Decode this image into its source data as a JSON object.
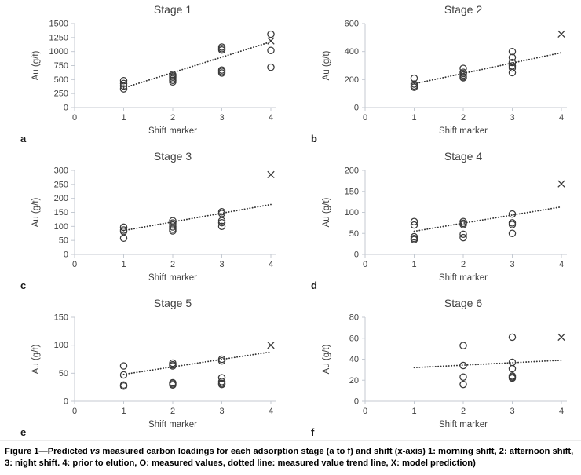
{
  "figure": {
    "caption_prefix": "Figure 1—Predicted ",
    "caption_italic": "vs",
    "caption_rest": " measured carbon loadings for each adsorption stage (a to f) and shift (x-axis) 1: morning shift, 2: afternoon shift, 3: night shift. 4: prior to elution, O: measured values, dotted line: measured value trend line, X: model prediction)"
  },
  "colors": {
    "axis": "#c4cad2",
    "text": "#404040",
    "marker": "#3a3a3a",
    "trend": "#333333"
  },
  "chart_data": [
    {
      "type": "scatter",
      "panel": "a",
      "title": "Stage 1",
      "xlabel": "Shift marker",
      "ylabel": "Au (g/t)",
      "xlim": [
        0,
        4
      ],
      "ylim": [
        0,
        1500
      ],
      "xticks": [
        0,
        1,
        2,
        3,
        4
      ],
      "yticks": [
        0,
        250,
        500,
        750,
        1000,
        1250,
        1500
      ],
      "legend_note": "O measured, dotted trend, X prediction",
      "measured": [
        [
          1,
          480
        ],
        [
          1,
          430
        ],
        [
          1,
          385
        ],
        [
          1,
          335
        ],
        [
          2,
          590
        ],
        [
          2,
          565
        ],
        [
          2,
          543
        ],
        [
          2,
          515
        ],
        [
          2,
          487
        ],
        [
          2,
          458
        ],
        [
          3,
          1080
        ],
        [
          3,
          1053
        ],
        [
          3,
          1028
        ],
        [
          3,
          670
        ],
        [
          3,
          645
        ],
        [
          3,
          618
        ],
        [
          4,
          1310
        ],
        [
          4,
          1020
        ],
        [
          4,
          720
        ]
      ],
      "prediction": [
        4,
        1190
      ],
      "trend": [
        [
          1,
          350
        ],
        [
          4,
          1175
        ]
      ]
    },
    {
      "type": "scatter",
      "panel": "b",
      "title": "Stage 2",
      "xlabel": "Shift marker",
      "ylabel": "Au (g/t)",
      "xlim": [
        0,
        4
      ],
      "ylim": [
        0,
        600
      ],
      "xticks": [
        0,
        1,
        2,
        3,
        4
      ],
      "yticks": [
        0,
        200,
        400,
        600
      ],
      "measured": [
        [
          1,
          210
        ],
        [
          1,
          168
        ],
        [
          1,
          155
        ],
        [
          1,
          145
        ],
        [
          2,
          280
        ],
        [
          2,
          252
        ],
        [
          2,
          243
        ],
        [
          2,
          232
        ],
        [
          2,
          220
        ],
        [
          2,
          213
        ],
        [
          3,
          400
        ],
        [
          3,
          358
        ],
        [
          3,
          322
        ],
        [
          3,
          298
        ],
        [
          3,
          283
        ],
        [
          3,
          250
        ]
      ],
      "prediction": [
        4,
        525
      ],
      "trend": [
        [
          1,
          170
        ],
        [
          4,
          392
        ]
      ]
    },
    {
      "type": "scatter",
      "panel": "c",
      "title": "Stage 3",
      "xlabel": "Shift marker",
      "ylabel": "Au (g/t)",
      "xlim": [
        0,
        4
      ],
      "ylim": [
        0,
        300
      ],
      "xticks": [
        0,
        1,
        2,
        3,
        4
      ],
      "yticks": [
        0,
        50,
        100,
        150,
        200,
        250,
        300
      ],
      "measured": [
        [
          1,
          97
        ],
        [
          1,
          87
        ],
        [
          1,
          82
        ],
        [
          1,
          58
        ],
        [
          2,
          120
        ],
        [
          2,
          112
        ],
        [
          2,
          105
        ],
        [
          2,
          98
        ],
        [
          2,
          90
        ],
        [
          2,
          84
        ],
        [
          3,
          152
        ],
        [
          3,
          146
        ],
        [
          3,
          120
        ],
        [
          3,
          113
        ],
        [
          3,
          100
        ]
      ],
      "prediction": [
        4,
        285
      ],
      "trend": [
        [
          1,
          85
        ],
        [
          4,
          178
        ]
      ]
    },
    {
      "type": "scatter",
      "panel": "d",
      "title": "Stage 4",
      "xlabel": "Shift marker",
      "ylabel": "Au (g/t)",
      "xlim": [
        0,
        4
      ],
      "ylim": [
        0,
        200
      ],
      "xticks": [
        0,
        1,
        2,
        3,
        4
      ],
      "yticks": [
        0,
        50,
        100,
        150,
        200
      ],
      "measured": [
        [
          1,
          78
        ],
        [
          1,
          70
        ],
        [
          1,
          42
        ],
        [
          1,
          38
        ],
        [
          1,
          35
        ],
        [
          2,
          78
        ],
        [
          2,
          74
        ],
        [
          2,
          71
        ],
        [
          2,
          48
        ],
        [
          2,
          40
        ],
        [
          3,
          96
        ],
        [
          3,
          75
        ],
        [
          3,
          71
        ],
        [
          3,
          50
        ]
      ],
      "prediction": [
        4,
        168
      ],
      "trend": [
        [
          1,
          55
        ],
        [
          4,
          113
        ]
      ]
    },
    {
      "type": "scatter",
      "panel": "e",
      "title": "Stage 5",
      "xlabel": "Shift marker",
      "ylabel": "Au (g/t)",
      "xlim": [
        0,
        4
      ],
      "ylim": [
        0,
        150
      ],
      "xticks": [
        0,
        1,
        2,
        3,
        4
      ],
      "yticks": [
        0,
        50,
        100,
        150
      ],
      "measured": [
        [
          1,
          63
        ],
        [
          1,
          47
        ],
        [
          1,
          29
        ],
        [
          1,
          27
        ],
        [
          2,
          68
        ],
        [
          2,
          65
        ],
        [
          2,
          63
        ],
        [
          2,
          33
        ],
        [
          2,
          31
        ],
        [
          2,
          29
        ],
        [
          3,
          75
        ],
        [
          3,
          72
        ],
        [
          3,
          42
        ],
        [
          3,
          35
        ],
        [
          3,
          32
        ],
        [
          3,
          30
        ]
      ],
      "prediction": [
        4,
        100
      ],
      "trend": [
        [
          1,
          48
        ],
        [
          4,
          88
        ]
      ]
    },
    {
      "type": "scatter",
      "panel": "f",
      "title": "Stage 6",
      "xlabel": "Shift marker",
      "ylabel": "Au (g/t)",
      "xlim": [
        0,
        4
      ],
      "ylim": [
        0,
        80
      ],
      "xticks": [
        0,
        1,
        2,
        3,
        4
      ],
      "yticks": [
        0,
        20,
        40,
        60,
        80
      ],
      "measured": [
        [
          2,
          53
        ],
        [
          2,
          34
        ],
        [
          2,
          23
        ],
        [
          2,
          16
        ],
        [
          3,
          61
        ],
        [
          3,
          37
        ],
        [
          3,
          31
        ],
        [
          3,
          24
        ],
        [
          3,
          23
        ],
        [
          3,
          22
        ]
      ],
      "prediction": [
        4,
        61
      ],
      "trend": [
        [
          1,
          32
        ],
        [
          4,
          39
        ]
      ]
    }
  ]
}
